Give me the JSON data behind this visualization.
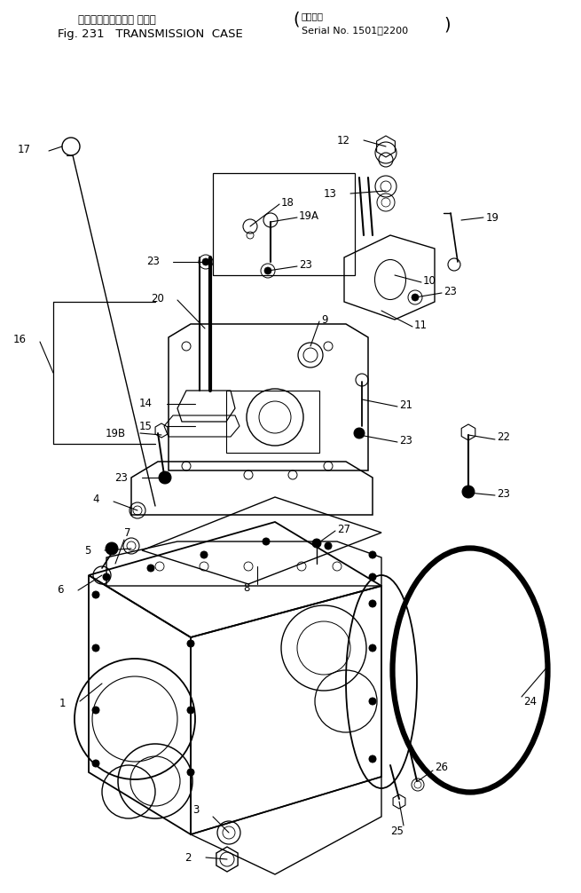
{
  "title_jp": "トランスミッション ケース",
  "title_en": "TRANSMISSION  CASE",
  "fig": "Fig. 231",
  "serial_jp": "適用号機",
  "serial_en": "Serial No. 1501～2200",
  "bg": "#ffffff",
  "lc": "#000000",
  "figsize": [
    6.55,
    10.06
  ],
  "dpi": 100
}
